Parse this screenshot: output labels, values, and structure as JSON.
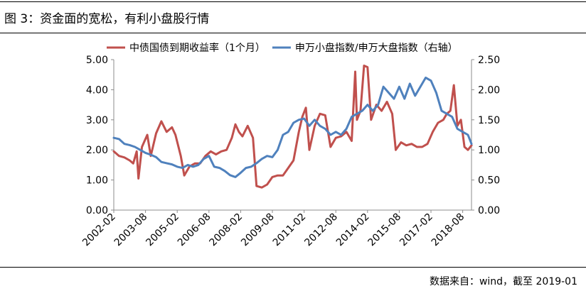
{
  "figure": {
    "title": "图 3：资金面的宽松，有利小盘股行情",
    "source": "数据来自：wind，截至 2019-01"
  },
  "colors": {
    "red": "#c0504d",
    "blue": "#4f81bd"
  },
  "chart_data": {
    "type": "line",
    "legend": [
      "中债国债到期收益率（1个月）",
      "申万小盘指数/申万大盘指数（右轴）"
    ],
    "legend_position": "top",
    "grid": false,
    "x_start": "2002-02",
    "x_end": "2019-01",
    "xticks": [
      "2002-02",
      "2003-08",
      "2005-02",
      "2006-08",
      "2008-02",
      "2009-08",
      "2011-02",
      "2012-08",
      "2014-02",
      "2015-08",
      "2017-02",
      "2018-08"
    ],
    "y_left": {
      "ylim": [
        0,
        5
      ],
      "ticks": [
        "0.00",
        "1.00",
        "2.00",
        "3.00",
        "4.00",
        "5.00"
      ]
    },
    "y_right": {
      "ylim": [
        0,
        2.5
      ],
      "ticks": [
        "0.00",
        "0.50",
        "1.00",
        "1.50",
        "2.00",
        "2.50"
      ]
    },
    "series": [
      {
        "name": "中债国债到期收益率（1个月）",
        "axis": "left",
        "color": "#c0504d",
        "points": [
          [
            "2002-02",
            1.95
          ],
          [
            "2002-05",
            1.8
          ],
          [
            "2002-08",
            1.75
          ],
          [
            "2002-11",
            1.65
          ],
          [
            "2003-01",
            1.55
          ],
          [
            "2003-03",
            1.95
          ],
          [
            "2003-04",
            1.05
          ],
          [
            "2003-06",
            2.1
          ],
          [
            "2003-09",
            2.5
          ],
          [
            "2003-11",
            1.8
          ],
          [
            "2004-02",
            2.55
          ],
          [
            "2004-05",
            2.95
          ],
          [
            "2004-08",
            2.6
          ],
          [
            "2004-11",
            2.75
          ],
          [
            "2005-01",
            2.5
          ],
          [
            "2005-04",
            1.8
          ],
          [
            "2005-06",
            1.15
          ],
          [
            "2005-09",
            1.45
          ],
          [
            "2005-12",
            1.55
          ],
          [
            "2006-03",
            1.55
          ],
          [
            "2006-06",
            1.8
          ],
          [
            "2006-09",
            1.95
          ],
          [
            "2006-12",
            1.85
          ],
          [
            "2007-03",
            1.95
          ],
          [
            "2007-06",
            2.0
          ],
          [
            "2007-09",
            2.4
          ],
          [
            "2007-11",
            2.85
          ],
          [
            "2008-01",
            2.6
          ],
          [
            "2008-03",
            2.45
          ],
          [
            "2008-06",
            2.8
          ],
          [
            "2008-09",
            2.4
          ],
          [
            "2008-11",
            0.8
          ],
          [
            "2009-02",
            0.75
          ],
          [
            "2009-05",
            0.85
          ],
          [
            "2009-08",
            1.1
          ],
          [
            "2009-11",
            1.15
          ],
          [
            "2010-02",
            1.15
          ],
          [
            "2010-05",
            1.4
          ],
          [
            "2010-08",
            1.65
          ],
          [
            "2010-11",
            2.6
          ],
          [
            "2011-01",
            3.1
          ],
          [
            "2011-03",
            3.4
          ],
          [
            "2011-05",
            2.0
          ],
          [
            "2011-08",
            2.8
          ],
          [
            "2011-11",
            3.2
          ],
          [
            "2012-02",
            3.15
          ],
          [
            "2012-05",
            2.1
          ],
          [
            "2012-08",
            2.4
          ],
          [
            "2012-11",
            2.45
          ],
          [
            "2013-02",
            2.6
          ],
          [
            "2013-05",
            2.3
          ],
          [
            "2013-07",
            4.6
          ],
          [
            "2013-08",
            3.0
          ],
          [
            "2013-10",
            3.3
          ],
          [
            "2013-12",
            4.8
          ],
          [
            "2014-02",
            4.75
          ],
          [
            "2014-04",
            3.0
          ],
          [
            "2014-07",
            3.5
          ],
          [
            "2014-10",
            3.3
          ],
          [
            "2015-01",
            3.6
          ],
          [
            "2015-04",
            3.2
          ],
          [
            "2015-06",
            2.0
          ],
          [
            "2015-09",
            2.25
          ],
          [
            "2015-12",
            2.15
          ],
          [
            "2016-03",
            2.2
          ],
          [
            "2016-06",
            2.1
          ],
          [
            "2016-09",
            2.1
          ],
          [
            "2016-12",
            2.2
          ],
          [
            "2017-03",
            2.6
          ],
          [
            "2017-06",
            2.9
          ],
          [
            "2017-09",
            3.0
          ],
          [
            "2017-11",
            3.2
          ],
          [
            "2018-01",
            3.3
          ],
          [
            "2018-03",
            4.15
          ],
          [
            "2018-05",
            2.8
          ],
          [
            "2018-07",
            3.0
          ],
          [
            "2018-09",
            2.1
          ],
          [
            "2018-11",
            2.0
          ],
          [
            "2019-01",
            2.15
          ]
        ]
      },
      {
        "name": "申万小盘指数/申万大盘指数（右轴）",
        "axis": "right",
        "color": "#4f81bd",
        "points": [
          [
            "2002-02",
            1.2
          ],
          [
            "2002-05",
            1.18
          ],
          [
            "2002-08",
            1.1
          ],
          [
            "2002-11",
            1.08
          ],
          [
            "2003-02",
            1.05
          ],
          [
            "2003-05",
            1.0
          ],
          [
            "2003-08",
            0.95
          ],
          [
            "2003-11",
            0.92
          ],
          [
            "2004-02",
            0.88
          ],
          [
            "2004-05",
            0.8
          ],
          [
            "2004-08",
            0.78
          ],
          [
            "2004-11",
            0.76
          ],
          [
            "2005-02",
            0.72
          ],
          [
            "2005-05",
            0.7
          ],
          [
            "2005-08",
            0.75
          ],
          [
            "2005-11",
            0.72
          ],
          [
            "2006-02",
            0.75
          ],
          [
            "2006-05",
            0.85
          ],
          [
            "2006-08",
            0.9
          ],
          [
            "2006-11",
            0.72
          ],
          [
            "2007-02",
            0.7
          ],
          [
            "2007-05",
            0.65
          ],
          [
            "2007-08",
            0.58
          ],
          [
            "2007-11",
            0.55
          ],
          [
            "2008-02",
            0.62
          ],
          [
            "2008-05",
            0.7
          ],
          [
            "2008-08",
            0.72
          ],
          [
            "2008-11",
            0.78
          ],
          [
            "2009-02",
            0.85
          ],
          [
            "2009-05",
            0.9
          ],
          [
            "2009-08",
            0.88
          ],
          [
            "2009-11",
            1.0
          ],
          [
            "2010-02",
            1.25
          ],
          [
            "2010-05",
            1.3
          ],
          [
            "2010-08",
            1.45
          ],
          [
            "2010-11",
            1.5
          ],
          [
            "2011-02",
            1.52
          ],
          [
            "2011-05",
            1.4
          ],
          [
            "2011-08",
            1.5
          ],
          [
            "2011-11",
            1.4
          ],
          [
            "2012-02",
            1.35
          ],
          [
            "2012-05",
            1.25
          ],
          [
            "2012-08",
            1.3
          ],
          [
            "2012-11",
            1.25
          ],
          [
            "2013-02",
            1.35
          ],
          [
            "2013-05",
            1.55
          ],
          [
            "2013-08",
            1.6
          ],
          [
            "2013-11",
            1.65
          ],
          [
            "2014-02",
            1.75
          ],
          [
            "2014-05",
            1.65
          ],
          [
            "2014-08",
            1.75
          ],
          [
            "2014-11",
            2.05
          ],
          [
            "2015-02",
            1.95
          ],
          [
            "2015-05",
            1.85
          ],
          [
            "2015-08",
            2.05
          ],
          [
            "2015-11",
            1.85
          ],
          [
            "2016-02",
            2.1
          ],
          [
            "2016-05",
            1.9
          ],
          [
            "2016-08",
            2.05
          ],
          [
            "2016-11",
            2.2
          ],
          [
            "2017-02",
            2.15
          ],
          [
            "2017-05",
            1.95
          ],
          [
            "2017-08",
            1.65
          ],
          [
            "2017-11",
            1.6
          ],
          [
            "2018-02",
            1.55
          ],
          [
            "2018-05",
            1.35
          ],
          [
            "2018-08",
            1.3
          ],
          [
            "2018-11",
            1.25
          ],
          [
            "2019-01",
            1.1
          ]
        ]
      }
    ]
  }
}
